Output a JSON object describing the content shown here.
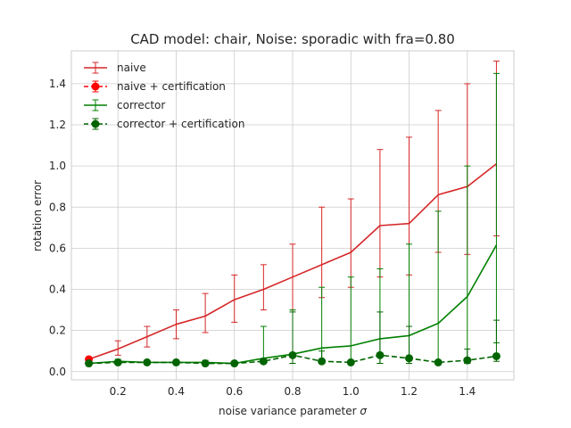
{
  "chart_data": {
    "type": "line",
    "title": "CAD model: chair, Noise: sporadic with fra=0.80",
    "xlabel_text": "noise variance parameter ",
    "xlabel_symbol": "σ",
    "ylabel": "rotation error",
    "xlim": [
      0.04,
      1.56
    ],
    "ylim": [
      -0.04,
      1.56
    ],
    "x_ticks": [
      0.2,
      0.4,
      0.6,
      0.8,
      1.0,
      1.2,
      1.4
    ],
    "x_tick_labels": [
      "0.2",
      "0.4",
      "0.6",
      "0.8",
      "1.0",
      "1.2",
      "1.4"
    ],
    "y_ticks": [
      0.0,
      0.2,
      0.4,
      0.6,
      0.8,
      1.0,
      1.2,
      1.4
    ],
    "y_tick_labels": [
      "0.0",
      "0.2",
      "0.4",
      "0.6",
      "0.8",
      "1.0",
      "1.2",
      "1.4"
    ],
    "grid": true,
    "legend_position": "top-left",
    "x": [
      0.1,
      0.2,
      0.3,
      0.4,
      0.5,
      0.6,
      0.7,
      0.8,
      0.9,
      1.0,
      1.1,
      1.2,
      1.3,
      1.4,
      1.5
    ],
    "series": [
      {
        "name": "naive",
        "color": "#d62728",
        "style": "solid",
        "marker": "none",
        "values": [
          0.06,
          0.11,
          0.17,
          0.23,
          0.27,
          0.35,
          0.4,
          0.46,
          0.52,
          0.58,
          0.71,
          0.72,
          0.86,
          0.9,
          1.01
        ],
        "err_low": [
          0.05,
          0.08,
          0.12,
          0.16,
          0.19,
          0.24,
          0.3,
          0.3,
          0.36,
          0.41,
          0.46,
          0.47,
          0.58,
          0.57,
          0.66
        ],
        "err_high": [
          0.06,
          0.15,
          0.22,
          0.3,
          0.38,
          0.47,
          0.52,
          0.62,
          0.8,
          0.84,
          1.08,
          1.14,
          1.27,
          1.4,
          1.51
        ]
      },
      {
        "name": "naive + certification",
        "color": "#ff0000",
        "style": "dashed",
        "marker": "circle",
        "values": [
          0.06,
          null,
          null,
          null,
          null,
          null,
          null,
          null,
          null,
          null,
          null,
          null,
          null,
          null,
          null
        ],
        "err_low": [
          0.05,
          null,
          null,
          null,
          null,
          null,
          null,
          null,
          null,
          null,
          null,
          null,
          null,
          null,
          null
        ],
        "err_high": [
          0.06,
          null,
          null,
          null,
          null,
          null,
          null,
          null,
          null,
          null,
          null,
          null,
          null,
          null,
          null
        ]
      },
      {
        "name": "corrector",
        "color": "#008000",
        "style": "solid",
        "marker": "none",
        "values": [
          0.04,
          0.05,
          0.045,
          0.045,
          0.045,
          0.04,
          0.065,
          0.085,
          0.115,
          0.125,
          0.16,
          0.175,
          0.235,
          0.365,
          0.615
        ],
        "err_low": [
          0.035,
          0.04,
          0.04,
          0.04,
          0.04,
          0.035,
          0.04,
          0.04,
          0.04,
          0.04,
          0.04,
          0.04,
          0.04,
          0.04,
          0.14
        ],
        "err_high": [
          0.05,
          0.06,
          0.055,
          0.055,
          0.055,
          0.05,
          0.22,
          0.3,
          0.41,
          0.46,
          0.5,
          0.62,
          0.78,
          1.0,
          1.45
        ]
      },
      {
        "name": "corrector + certification",
        "color": "#006400",
        "style": "dashed",
        "marker": "circle",
        "values": [
          0.04,
          0.045,
          0.045,
          0.045,
          0.04,
          0.04,
          0.05,
          0.08,
          0.05,
          0.045,
          0.08,
          0.065,
          0.045,
          0.055,
          0.075
        ],
        "err_low": [
          0.035,
          0.04,
          0.04,
          0.04,
          0.035,
          0.035,
          0.04,
          0.04,
          0.04,
          0.04,
          0.04,
          0.04,
          0.04,
          0.04,
          0.05
        ],
        "err_high": [
          0.045,
          0.05,
          0.05,
          0.05,
          0.045,
          0.045,
          0.06,
          0.29,
          0.1,
          0.05,
          0.29,
          0.22,
          0.05,
          0.11,
          0.25
        ]
      }
    ]
  }
}
